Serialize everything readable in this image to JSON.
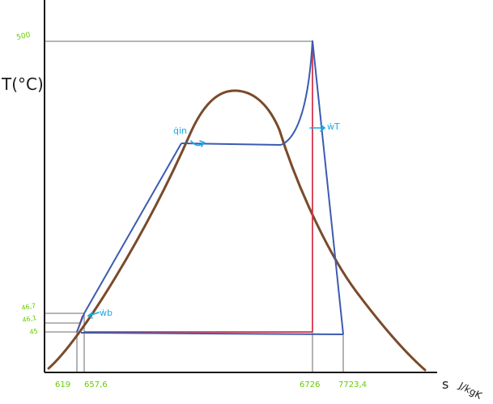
{
  "axes": {
    "y_label": "T(°C)",
    "x_label": "s",
    "x_unit": "J/kgK"
  },
  "y_ticks": {
    "t500": "500",
    "t46_7": "46,7",
    "t46_1": "46,1",
    "t45": "45"
  },
  "x_ticks": {
    "s619": "619",
    "s657": "657,6",
    "s6726": "6726",
    "s7723": "7723,4"
  },
  "annotations": {
    "q_in": "q̇in",
    "w_t": "ẇT",
    "w_b": "ẇb"
  },
  "colors": {
    "axis": "#1a1a1a",
    "dome": "#7a4a2a",
    "cycle_blue": "#3c5bb0",
    "cycle_red": "#d9334a",
    "guide": "#8a8a8a",
    "tick_labels": "#66cc00",
    "annotation": "#19a9e6"
  }
}
